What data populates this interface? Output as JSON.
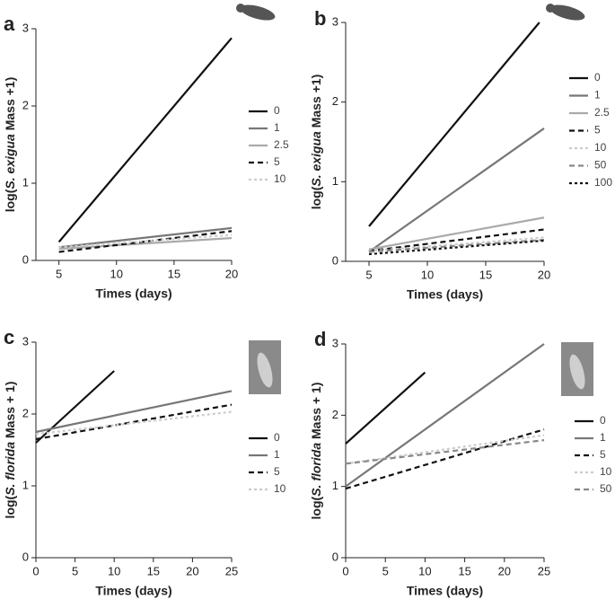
{
  "chart_data": [
    {
      "type": "line",
      "panel": "a",
      "xlabel": "Times (days)",
      "ylabel": [
        "log(",
        "S. exigua",
        " Mass +1)"
      ],
      "xlim": [
        3,
        20
      ],
      "ylim": [
        0,
        3
      ],
      "xticks": [
        5,
        10,
        15,
        20
      ],
      "yticks": [
        0,
        1,
        2,
        3
      ],
      "series": [
        {
          "name": "0",
          "color": "#111111",
          "style": "solid",
          "x": [
            5,
            20
          ],
          "values": [
            0.24,
            2.88
          ]
        },
        {
          "name": "1",
          "color": "#777777",
          "style": "solid",
          "x": [
            5,
            20
          ],
          "values": [
            0.17,
            0.42
          ]
        },
        {
          "name": "2.5",
          "color": "#aaaaaa",
          "style": "solid",
          "x": [
            5,
            20
          ],
          "values": [
            0.15,
            0.29
          ]
        },
        {
          "name": "5",
          "color": "#111111",
          "style": "dashed",
          "x": [
            5,
            20
          ],
          "values": [
            0.11,
            0.38
          ]
        },
        {
          "name": "10",
          "color": "#cccccc",
          "style": "dotted",
          "x": [
            5,
            20
          ],
          "values": [
            0.17,
            0.33
          ]
        }
      ]
    },
    {
      "type": "line",
      "panel": "b",
      "xlabel": "Times (days)",
      "ylabel": [
        "log(",
        "S. exigua",
        " Mass +1)"
      ],
      "xlim": [
        3,
        20
      ],
      "ylim": [
        0,
        3
      ],
      "xticks": [
        5,
        10,
        15,
        20
      ],
      "yticks": [
        0,
        1,
        2,
        3
      ],
      "series": [
        {
          "name": "0",
          "color": "#111111",
          "style": "solid",
          "x": [
            5,
            19.6
          ],
          "values": [
            0.44,
            3.0
          ]
        },
        {
          "name": "1",
          "color": "#777777",
          "style": "solid",
          "x": [
            5,
            20
          ],
          "values": [
            0.12,
            1.67
          ]
        },
        {
          "name": "2.5",
          "color": "#aaaaaa",
          "style": "solid",
          "x": [
            5,
            20
          ],
          "values": [
            0.15,
            0.55
          ]
        },
        {
          "name": "5",
          "color": "#111111",
          "style": "dashed",
          "x": [
            5,
            20
          ],
          "values": [
            0.13,
            0.4
          ]
        },
        {
          "name": "10",
          "color": "#cccccc",
          "style": "dotted",
          "x": [
            5,
            20
          ],
          "values": [
            0.13,
            0.3
          ]
        },
        {
          "name": "50",
          "color": "#888888",
          "style": "dashed",
          "x": [
            5,
            20
          ],
          "values": [
            0.12,
            0.27
          ]
        },
        {
          "name": "100",
          "color": "#111111",
          "style": "dotted",
          "x": [
            5,
            20
          ],
          "values": [
            0.09,
            0.26
          ]
        }
      ]
    },
    {
      "type": "line",
      "panel": "c",
      "xlabel": "Times (days)",
      "ylabel": [
        "log(",
        "S. florida",
        " Mass + 1)"
      ],
      "xlim": [
        0,
        25
      ],
      "ylim": [
        0,
        3
      ],
      "xticks": [
        0,
        5,
        10,
        15,
        20,
        25
      ],
      "yticks": [
        0,
        1,
        2,
        3
      ],
      "series": [
        {
          "name": "0",
          "color": "#111111",
          "style": "solid",
          "x": [
            0,
            10
          ],
          "values": [
            1.6,
            2.6
          ]
        },
        {
          "name": "1",
          "color": "#777777",
          "style": "solid",
          "x": [
            0,
            25
          ],
          "values": [
            1.75,
            2.32
          ]
        },
        {
          "name": "5",
          "color": "#111111",
          "style": "dashed",
          "x": [
            0,
            25
          ],
          "values": [
            1.65,
            2.13
          ]
        },
        {
          "name": "10",
          "color": "#cccccc",
          "style": "dotted",
          "x": [
            0,
            25
          ],
          "values": [
            1.72,
            2.03
          ]
        }
      ]
    },
    {
      "type": "line",
      "panel": "d",
      "xlabel": "Times (days)",
      "ylabel": [
        "log(",
        "S. florida",
        " Mass + 1)"
      ],
      "xlim": [
        0,
        25
      ],
      "ylim": [
        0,
        3
      ],
      "xticks": [
        0,
        5,
        10,
        15,
        20,
        25
      ],
      "yticks": [
        0,
        1,
        2,
        3
      ],
      "series": [
        {
          "name": "0",
          "color": "#111111",
          "style": "solid",
          "x": [
            0,
            10
          ],
          "values": [
            1.6,
            2.6
          ]
        },
        {
          "name": "1",
          "color": "#777777",
          "style": "solid",
          "x": [
            0,
            25
          ],
          "values": [
            1.0,
            3.0
          ]
        },
        {
          "name": "5",
          "color": "#111111",
          "style": "dashed",
          "x": [
            0,
            25
          ],
          "values": [
            0.97,
            1.8
          ]
        },
        {
          "name": "10",
          "color": "#cccccc",
          "style": "dotted",
          "x": [
            0,
            25
          ],
          "values": [
            1.32,
            1.72
          ]
        },
        {
          "name": "50",
          "color": "#888888",
          "style": "dashed",
          "x": [
            0,
            25
          ],
          "values": [
            1.32,
            1.65
          ]
        }
      ]
    }
  ]
}
